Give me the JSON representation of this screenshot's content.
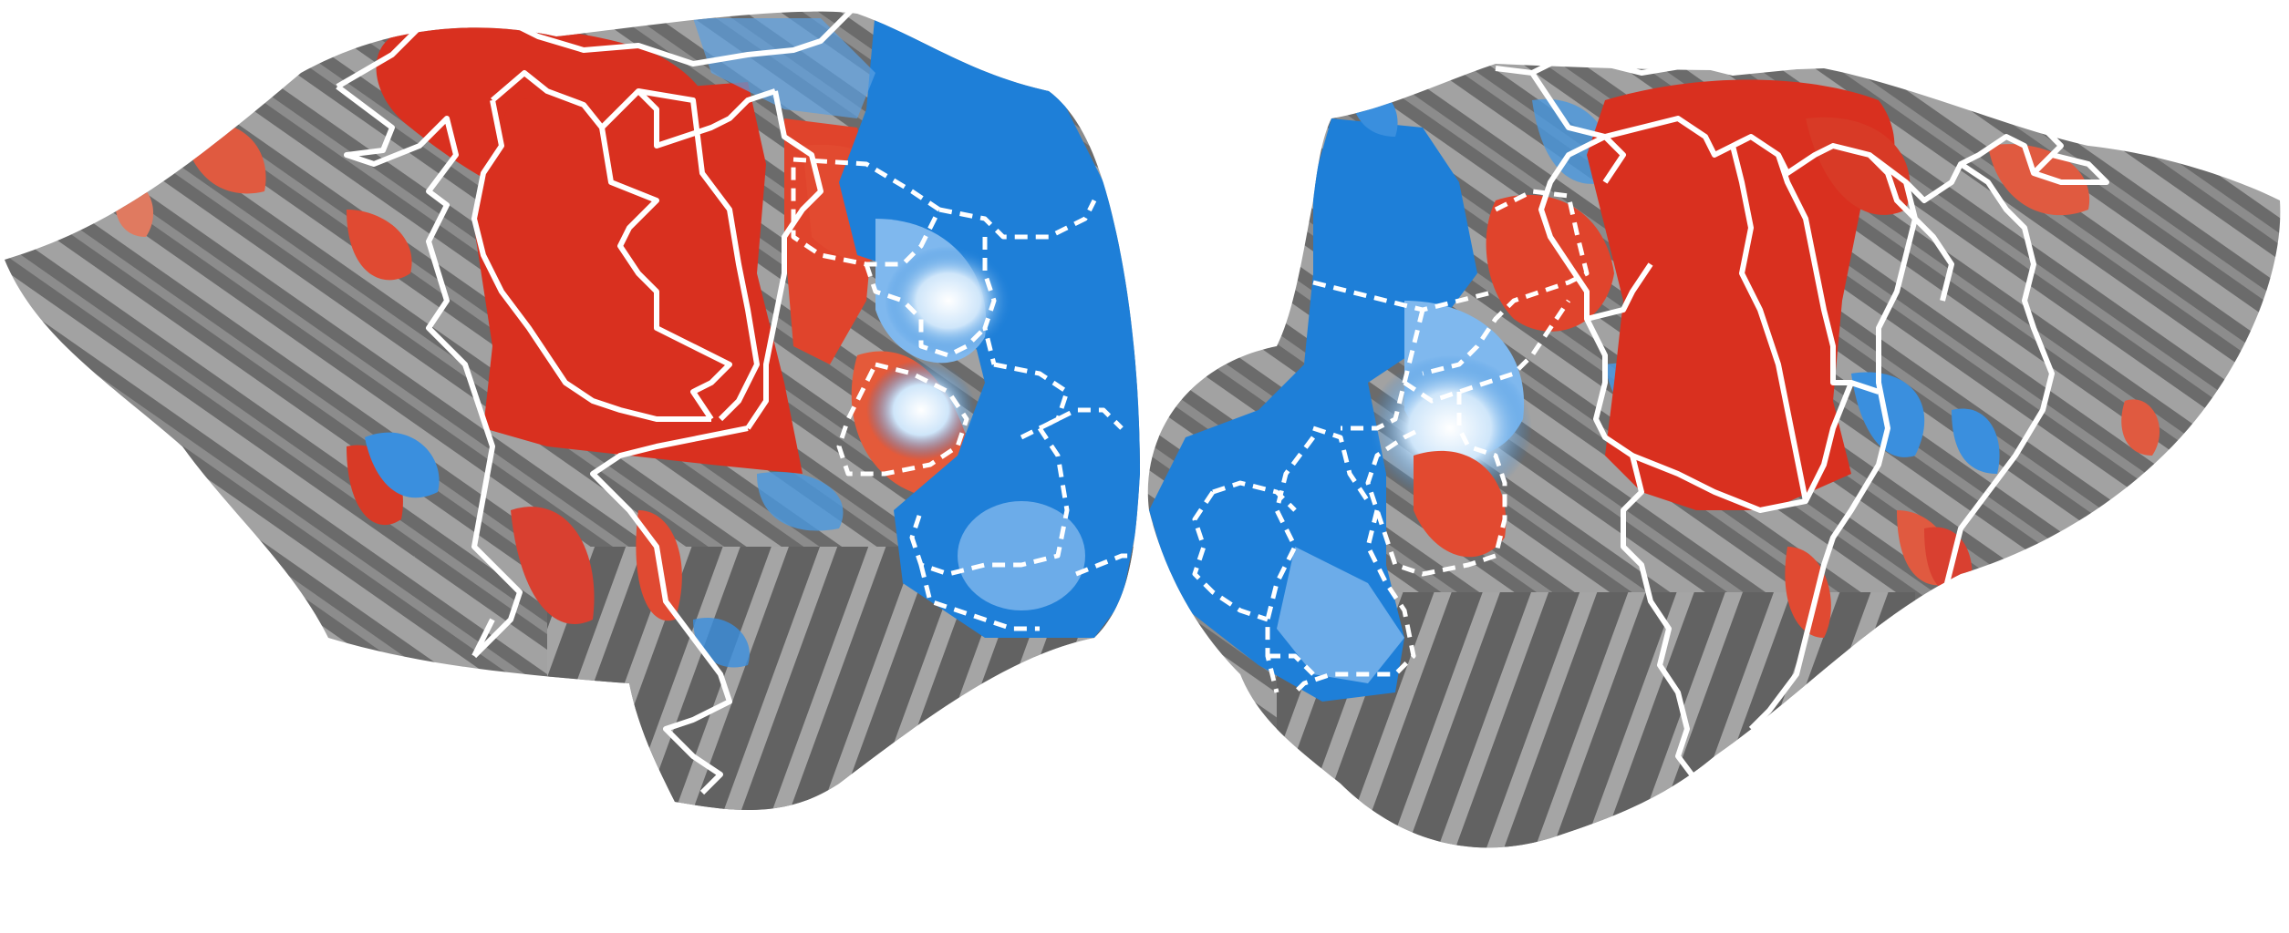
{
  "figure": {
    "kind": "flattened cortical surface map",
    "hemispheres": [
      "left",
      "right"
    ],
    "colors": {
      "background": "#ffffff",
      "cortex_dark": "#5a5a5a",
      "cortex_light": "#9a9a9a",
      "positive_red": "#d9301f",
      "positive_light": "#f07a5a",
      "negative_blue": "#1e7fd8",
      "negative_light": "#7fb8ee",
      "outline": "#ffffff"
    },
    "legend_items": [
      {
        "label": "",
        "style": "solid outline"
      },
      {
        "label": "",
        "style": "dashed outline"
      }
    ]
  }
}
